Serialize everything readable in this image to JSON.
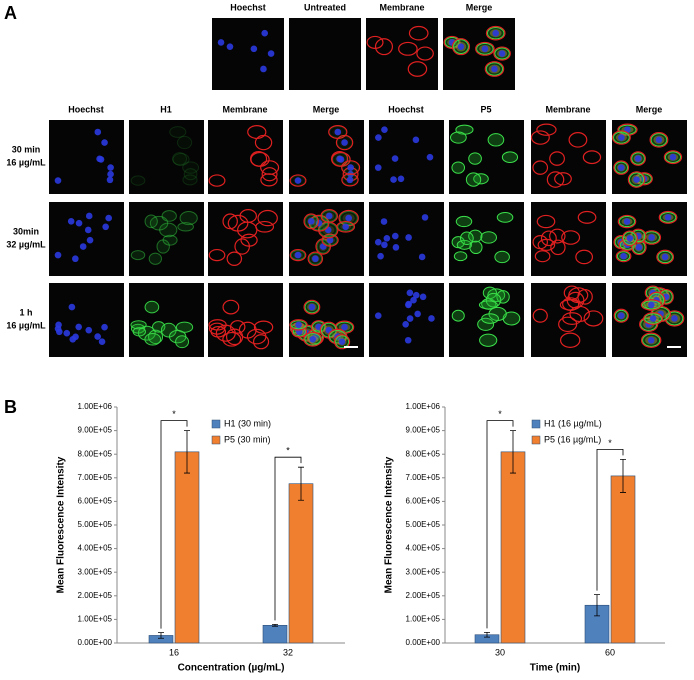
{
  "figure": {
    "panel_a_label": "A",
    "panel_b_label": "B",
    "top_row_labels": [
      "Hoechst",
      "Untreated",
      "Membrane",
      "Merge"
    ],
    "column_labels": [
      "Hoechst",
      "H1",
      "Membrane",
      "Merge",
      "Hoechst",
      "P5",
      "Membrane",
      "Merge"
    ],
    "row_labels": [
      [
        "30 min",
        "16 µg/mL"
      ],
      [
        "30min",
        "32 µg/mL"
      ],
      [
        "1 h",
        "16 µg/mL"
      ]
    ]
  },
  "chart_data": [
    {
      "type": "bar",
      "ylabel": "Mean Fluorescence Intensity",
      "xlabel": "Concentration (µg/mL)",
      "categories": [
        "16",
        "32"
      ],
      "series": [
        {
          "name": "H1 (30 min)",
          "color": "#4f81bd",
          "values": [
            32000,
            75000
          ],
          "errors": [
            12000,
            4000
          ]
        },
        {
          "name": "P5 (30 min)",
          "color": "#f07f2f",
          "values": [
            810000,
            675000
          ],
          "errors": [
            90000,
            70000
          ]
        }
      ],
      "significance": [
        "*",
        "*"
      ],
      "ylim": [
        0,
        1000000
      ],
      "yticks": [
        {
          "value": 0,
          "label": "0.00E+00"
        },
        {
          "value": 100000,
          "label": "1.00E+05"
        },
        {
          "value": 200000,
          "label": "2.00E+05"
        },
        {
          "value": 300000,
          "label": "3.00E+05"
        },
        {
          "value": 400000,
          "label": "4.00E+05"
        },
        {
          "value": 500000,
          "label": "5.00E+05"
        },
        {
          "value": 600000,
          "label": "6.00E+05"
        },
        {
          "value": 700000,
          "label": "7.00E+05"
        },
        {
          "value": 800000,
          "label": "8.00E+05"
        },
        {
          "value": 900000,
          "label": "9.00E+05"
        },
        {
          "value": 1000000,
          "label": "1.00E+06"
        }
      ],
      "grid": false,
      "legend": "top"
    },
    {
      "type": "bar",
      "ylabel": "Mean Fluorescence Intensity",
      "xlabel": "Time (min)",
      "categories": [
        "30",
        "60"
      ],
      "series": [
        {
          "name": "H1 (16 µg/mL)",
          "color": "#4f81bd",
          "values": [
            35000,
            160000
          ],
          "errors": [
            10000,
            45000
          ]
        },
        {
          "name": "P5 (16 µg/mL)",
          "color": "#f07f2f",
          "values": [
            810000,
            708000
          ],
          "errors": [
            90000,
            70000
          ]
        }
      ],
      "significance": [
        "*",
        "*"
      ],
      "ylim": [
        0,
        1000000
      ],
      "yticks": [
        {
          "value": 0,
          "label": "0.00E+00"
        },
        {
          "value": 100000,
          "label": "1.00E+05"
        },
        {
          "value": 200000,
          "label": "2.00E+05"
        },
        {
          "value": 300000,
          "label": "3.00E+05"
        },
        {
          "value": 400000,
          "label": "4.00E+05"
        },
        {
          "value": 500000,
          "label": "5.00E+05"
        },
        {
          "value": 600000,
          "label": "6.00E+05"
        },
        {
          "value": 700000,
          "label": "7.00E+05"
        },
        {
          "value": 800000,
          "label": "8.00E+05"
        },
        {
          "value": 900000,
          "label": "9.00E+05"
        },
        {
          "value": 1000000,
          "label": "1.00E+06"
        }
      ],
      "grid": false,
      "legend": "top"
    }
  ]
}
